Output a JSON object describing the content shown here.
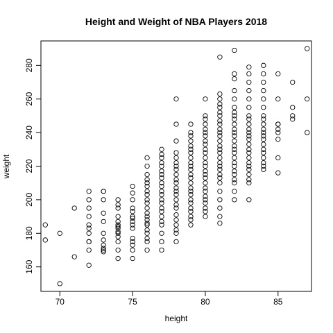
{
  "chart_data": {
    "type": "scatter",
    "title": "Height and Weight of NBA Players 2018",
    "xlabel": "height",
    "ylabel": "weight",
    "xlim": [
      68.7,
      87.3
    ],
    "ylim": [
      145.4,
      294.6
    ],
    "xticks": [
      70,
      75,
      80,
      85
    ],
    "yticks": [
      160,
      180,
      200,
      220,
      240,
      260,
      280
    ],
    "grid": false,
    "legend": "none",
    "x": [
      69,
      69,
      70,
      70,
      71,
      71,
      72,
      72,
      72,
      72,
      72,
      72,
      72,
      72,
      72,
      72,
      72,
      73,
      73,
      73,
      73,
      73,
      73,
      73,
      73,
      73,
      73,
      73,
      74,
      74,
      74,
      74,
      74,
      74,
      74,
      74,
      74,
      74,
      74,
      74,
      74,
      74,
      75,
      75,
      75,
      75,
      75,
      75,
      75,
      75,
      75,
      75,
      75,
      75,
      75,
      75,
      75,
      76,
      76,
      76,
      76,
      76,
      76,
      76,
      76,
      76,
      76,
      76,
      76,
      76,
      76,
      76,
      76,
      76,
      76,
      76,
      76,
      76,
      77,
      77,
      77,
      77,
      77,
      77,
      77,
      77,
      77,
      77,
      77,
      77,
      77,
      77,
      77,
      77,
      77,
      77,
      77,
      77,
      77,
      77,
      78,
      78,
      78,
      78,
      78,
      78,
      78,
      78,
      78,
      78,
      78,
      78,
      78,
      78,
      78,
      78,
      78,
      78,
      78,
      78,
      78,
      78,
      78,
      79,
      79,
      79,
      79,
      79,
      79,
      79,
      79,
      79,
      79,
      79,
      79,
      79,
      79,
      79,
      79,
      79,
      79,
      79,
      79,
      79,
      79,
      79,
      79,
      80,
      80,
      80,
      80,
      80,
      80,
      80,
      80,
      80,
      80,
      80,
      80,
      80,
      80,
      80,
      80,
      80,
      80,
      80,
      80,
      80,
      80,
      80,
      80,
      80,
      80,
      81,
      81,
      81,
      81,
      81,
      81,
      81,
      81,
      81,
      81,
      81,
      81,
      81,
      81,
      81,
      81,
      81,
      81,
      81,
      81,
      81,
      81,
      81,
      81,
      81,
      81,
      81,
      81,
      82,
      82,
      82,
      82,
      82,
      82,
      82,
      82,
      82,
      82,
      82,
      82,
      82,
      82,
      82,
      82,
      82,
      82,
      82,
      82,
      82,
      82,
      82,
      82,
      82,
      82,
      83,
      83,
      83,
      83,
      83,
      83,
      83,
      83,
      83,
      83,
      83,
      83,
      83,
      83,
      83,
      83,
      83,
      83,
      83,
      83,
      83,
      83,
      83,
      83,
      84,
      84,
      84,
      84,
      84,
      84,
      84,
      84,
      84,
      84,
      84,
      84,
      84,
      84,
      84,
      84,
      84,
      84,
      84,
      84,
      85,
      85,
      85,
      85,
      85,
      85,
      85,
      85,
      85,
      86,
      86,
      86,
      86,
      87,
      87,
      87
    ],
    "y": [
      185,
      176,
      180,
      150,
      195,
      166,
      205,
      200,
      195,
      190,
      185,
      183,
      180,
      175,
      175,
      170,
      161,
      205,
      205,
      200,
      192,
      187,
      180,
      176,
      173,
      171,
      170,
      169,
      200,
      197,
      195,
      190,
      187,
      185,
      184,
      183,
      181,
      180,
      178,
      175,
      170,
      165,
      208,
      204,
      200,
      195,
      193,
      190,
      189,
      187,
      185,
      183,
      177,
      175,
      173,
      170,
      165,
      225,
      220,
      215,
      212,
      210,
      208,
      205,
      203,
      200,
      198,
      195,
      192,
      190,
      188,
      186,
      185,
      182,
      180,
      177,
      175,
      170,
      230,
      227,
      225,
      222,
      220,
      217,
      215,
      213,
      210,
      208,
      205,
      203,
      200,
      198,
      195,
      193,
      190,
      187,
      185,
      180,
      175,
      170,
      260,
      245,
      235,
      228,
      225,
      222,
      220,
      218,
      215,
      212,
      210,
      207,
      205,
      203,
      200,
      197,
      195,
      191,
      188,
      185,
      182,
      180,
      175,
      245,
      240,
      238,
      235,
      232,
      230,
      228,
      225,
      222,
      220,
      218,
      215,
      213,
      210,
      207,
      205,
      203,
      200,
      198,
      195,
      193,
      190,
      188,
      185,
      260,
      250,
      248,
      245,
      242,
      240,
      238,
      235,
      233,
      230,
      228,
      225,
      222,
      220,
      217,
      215,
      213,
      210,
      207,
      205,
      202,
      200,
      198,
      195,
      193,
      190,
      285,
      263,
      260,
      257,
      255,
      252,
      250,
      247,
      245,
      242,
      240,
      238,
      235,
      232,
      230,
      228,
      225,
      222,
      220,
      218,
      215,
      213,
      210,
      205,
      200,
      195,
      190,
      186,
      289,
      275,
      272,
      265,
      260,
      255,
      252,
      250,
      248,
      245,
      242,
      240,
      238,
      235,
      232,
      230,
      228,
      225,
      222,
      220,
      217,
      215,
      212,
      210,
      205,
      200,
      279,
      275,
      270,
      265,
      260,
      255,
      250,
      248,
      245,
      242,
      240,
      238,
      236,
      233,
      230,
      228,
      225,
      222,
      220,
      218,
      215,
      212,
      210,
      200,
      280,
      275,
      270,
      265,
      260,
      255,
      250,
      248,
      245,
      242,
      240,
      238,
      236,
      233,
      230,
      228,
      225,
      222,
      220,
      218,
      275,
      260,
      245,
      245,
      242,
      240,
      236,
      225,
      216,
      270,
      255,
      250,
      248,
      290,
      260,
      240
    ]
  }
}
